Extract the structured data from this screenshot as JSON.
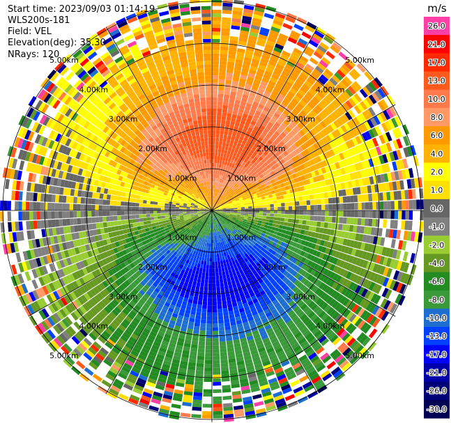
{
  "header": {
    "start_time": "Start time: 2023/09/03 01:14:19",
    "instrument": "WLS200s-181",
    "field": "Field: VEL",
    "elevation": "Elevation(deg): 35.30",
    "nrays": "NRays: 120"
  },
  "chart_data": {
    "type": "heatmap",
    "projection": "polar-ppi",
    "field": "VEL",
    "nrays": 120,
    "range_rings_km": [
      1.0,
      2.0,
      3.0,
      4.0,
      5.0
    ],
    "range_ring_labels": [
      "1.00km",
      "2.00km",
      "3.00km",
      "4.00km",
      "5.00km"
    ],
    "max_range_km": 5.0,
    "spoke_angles_deg": [
      0,
      30,
      60,
      90,
      120,
      150,
      180,
      210,
      240,
      270,
      300,
      330
    ],
    "pattern": "dominant wind from the north (positive velocities toward top), negative velocities toward bottom, noisy random colors at far range",
    "colorbar": {
      "unit": "m/s",
      "ticks": [
        "26.0",
        "21.0",
        "17.0",
        "13.0",
        "10.0",
        "8.0",
        "6.0",
        "4.0",
        "2.0",
        "1.0",
        "0.0",
        "-1.0",
        "-2.0",
        "-4.0",
        "-6.0",
        "-8.0",
        "-10.0",
        "-13.0",
        "-17.0",
        "-21.0",
        "-26.0",
        "-30.0"
      ],
      "colors": [
        "#ff3fa8",
        "#ff0000",
        "#ff2a00",
        "#ff5a1e",
        "#ff7a4a",
        "#ff9966",
        "#ff9900",
        "#ffb300",
        "#ffff00",
        "#ffe000",
        "#666666",
        "#808080",
        "#99cc33",
        "#669922",
        "#228b22",
        "#3a9a3a",
        "#1e6ed0",
        "#0040ff",
        "#0000ff",
        "#0000aa",
        "#000077",
        "#000055"
      ]
    }
  }
}
